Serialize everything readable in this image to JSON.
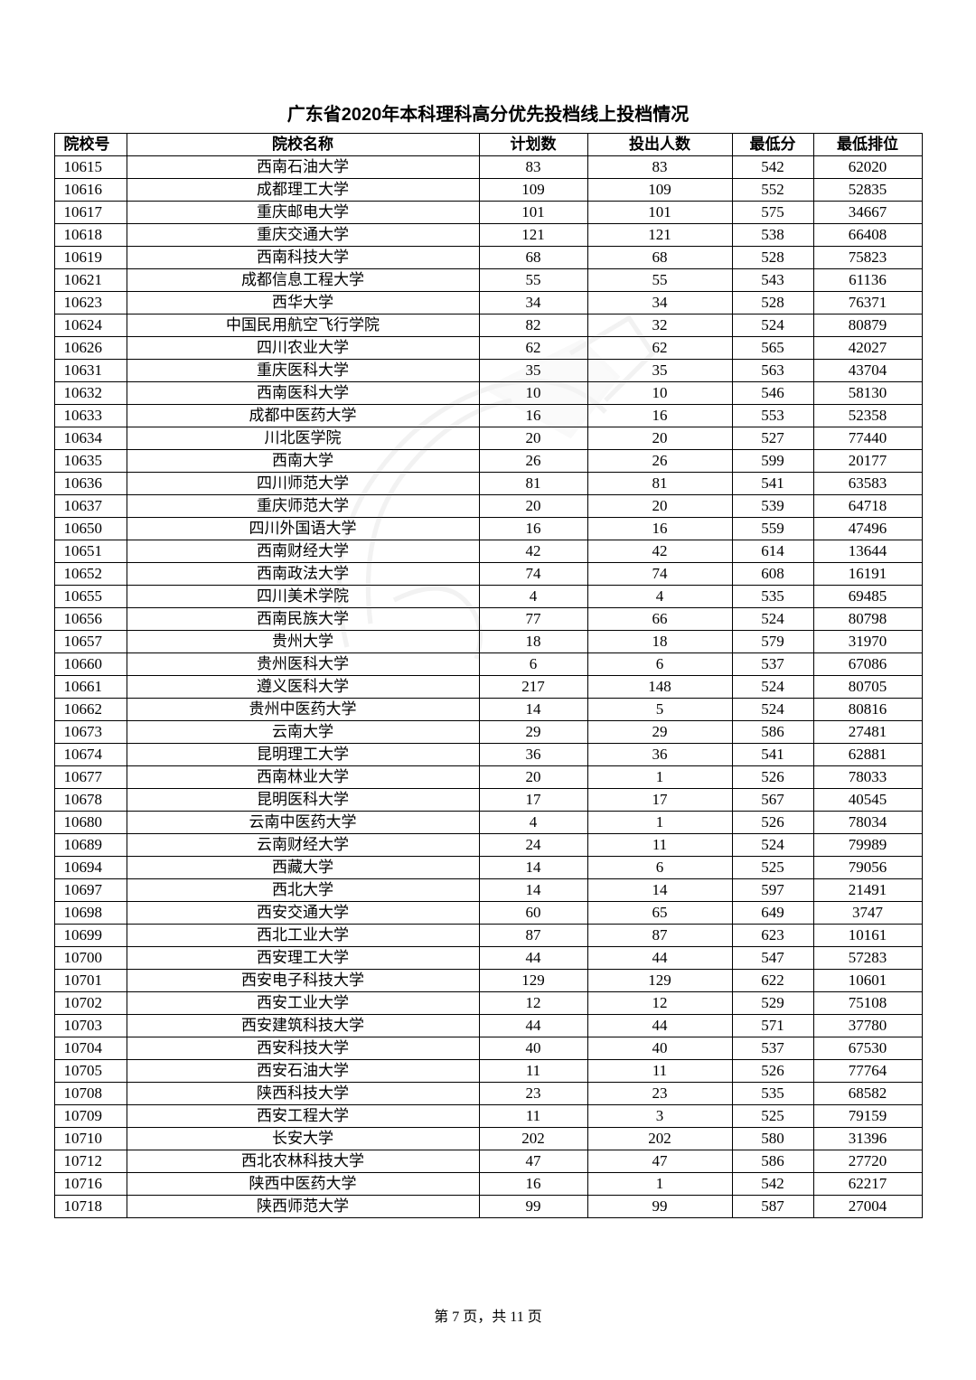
{
  "title": "广东省2020年本科理科高分优先投档线上投档情况",
  "columns": [
    "院校号",
    "院校名称",
    "计划数",
    "投出人数",
    "最低分",
    "最低排位"
  ],
  "rows": [
    [
      "10615",
      "西南石油大学",
      "83",
      "83",
      "542",
      "62020"
    ],
    [
      "10616",
      "成都理工大学",
      "109",
      "109",
      "552",
      "52835"
    ],
    [
      "10617",
      "重庆邮电大学",
      "101",
      "101",
      "575",
      "34667"
    ],
    [
      "10618",
      "重庆交通大学",
      "121",
      "121",
      "538",
      "66408"
    ],
    [
      "10619",
      "西南科技大学",
      "68",
      "68",
      "528",
      "75823"
    ],
    [
      "10621",
      "成都信息工程大学",
      "55",
      "55",
      "543",
      "61136"
    ],
    [
      "10623",
      "西华大学",
      "34",
      "34",
      "528",
      "76371"
    ],
    [
      "10624",
      "中国民用航空飞行学院",
      "82",
      "32",
      "524",
      "80879"
    ],
    [
      "10626",
      "四川农业大学",
      "62",
      "62",
      "565",
      "42027"
    ],
    [
      "10631",
      "重庆医科大学",
      "35",
      "35",
      "563",
      "43704"
    ],
    [
      "10632",
      "西南医科大学",
      "10",
      "10",
      "546",
      "58130"
    ],
    [
      "10633",
      "成都中医药大学",
      "16",
      "16",
      "553",
      "52358"
    ],
    [
      "10634",
      "川北医学院",
      "20",
      "20",
      "527",
      "77440"
    ],
    [
      "10635",
      "西南大学",
      "26",
      "26",
      "599",
      "20177"
    ],
    [
      "10636",
      "四川师范大学",
      "81",
      "81",
      "541",
      "63583"
    ],
    [
      "10637",
      "重庆师范大学",
      "20",
      "20",
      "539",
      "64718"
    ],
    [
      "10650",
      "四川外国语大学",
      "16",
      "16",
      "559",
      "47496"
    ],
    [
      "10651",
      "西南财经大学",
      "42",
      "42",
      "614",
      "13644"
    ],
    [
      "10652",
      "西南政法大学",
      "74",
      "74",
      "608",
      "16191"
    ],
    [
      "10655",
      "四川美术学院",
      "4",
      "4",
      "535",
      "69485"
    ],
    [
      "10656",
      "西南民族大学",
      "77",
      "66",
      "524",
      "80798"
    ],
    [
      "10657",
      "贵州大学",
      "18",
      "18",
      "579",
      "31970"
    ],
    [
      "10660",
      "贵州医科大学",
      "6",
      "6",
      "537",
      "67086"
    ],
    [
      "10661",
      "遵义医科大学",
      "217",
      "148",
      "524",
      "80705"
    ],
    [
      "10662",
      "贵州中医药大学",
      "14",
      "5",
      "524",
      "80816"
    ],
    [
      "10673",
      "云南大学",
      "29",
      "29",
      "586",
      "27481"
    ],
    [
      "10674",
      "昆明理工大学",
      "36",
      "36",
      "541",
      "62881"
    ],
    [
      "10677",
      "西南林业大学",
      "20",
      "1",
      "526",
      "78033"
    ],
    [
      "10678",
      "昆明医科大学",
      "17",
      "17",
      "567",
      "40545"
    ],
    [
      "10680",
      "云南中医药大学",
      "4",
      "1",
      "526",
      "78034"
    ],
    [
      "10689",
      "云南财经大学",
      "24",
      "11",
      "524",
      "79989"
    ],
    [
      "10694",
      "西藏大学",
      "14",
      "6",
      "525",
      "79056"
    ],
    [
      "10697",
      "西北大学",
      "14",
      "14",
      "597",
      "21491"
    ],
    [
      "10698",
      "西安交通大学",
      "60",
      "65",
      "649",
      "3747"
    ],
    [
      "10699",
      "西北工业大学",
      "87",
      "87",
      "623",
      "10161"
    ],
    [
      "10700",
      "西安理工大学",
      "44",
      "44",
      "547",
      "57283"
    ],
    [
      "10701",
      "西安电子科技大学",
      "129",
      "129",
      "622",
      "10601"
    ],
    [
      "10702",
      "西安工业大学",
      "12",
      "12",
      "529",
      "75108"
    ],
    [
      "10703",
      "西安建筑科技大学",
      "44",
      "44",
      "571",
      "37780"
    ],
    [
      "10704",
      "西安科技大学",
      "40",
      "40",
      "537",
      "67530"
    ],
    [
      "10705",
      "西安石油大学",
      "11",
      "11",
      "526",
      "77764"
    ],
    [
      "10708",
      "陕西科技大学",
      "23",
      "23",
      "535",
      "68582"
    ],
    [
      "10709",
      "西安工程大学",
      "11",
      "3",
      "525",
      "79159"
    ],
    [
      "10710",
      "长安大学",
      "202",
      "202",
      "580",
      "31396"
    ],
    [
      "10712",
      "西北农林科技大学",
      "47",
      "47",
      "586",
      "27720"
    ],
    [
      "10716",
      "陕西中医药大学",
      "16",
      "1",
      "542",
      "62217"
    ],
    [
      "10718",
      "陕西师范大学",
      "99",
      "99",
      "587",
      "27004"
    ]
  ],
  "footer": "第 7 页，共 11 页",
  "watermark_color": "#888888"
}
